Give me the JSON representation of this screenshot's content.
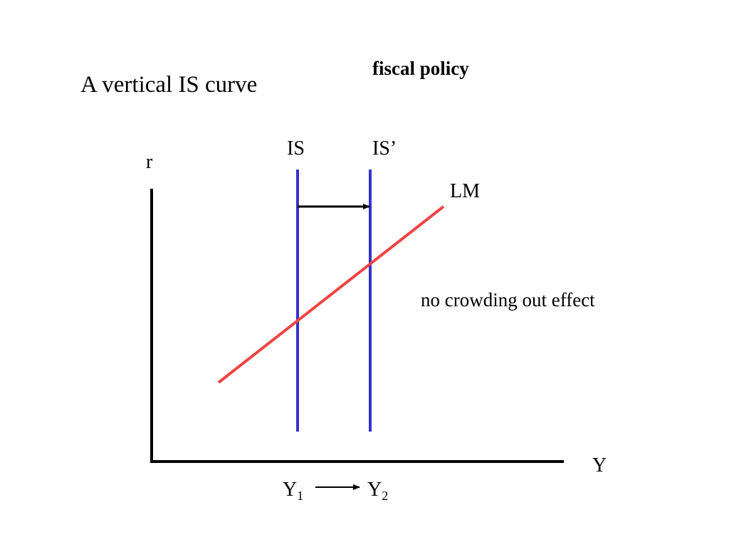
{
  "header": {
    "title": "A vertical IS curve",
    "topic": "fiscal policy"
  },
  "axes": {
    "y_label": "r",
    "x_label": "Y"
  },
  "curves": {
    "is": "IS",
    "is_shifted": "IS’",
    "lm": "LM"
  },
  "annotation": "no crowding out effect",
  "outputs": [
    {
      "symbol": "Y",
      "subscript": "1"
    },
    {
      "symbol": "Y",
      "subscript": "2"
    }
  ]
}
